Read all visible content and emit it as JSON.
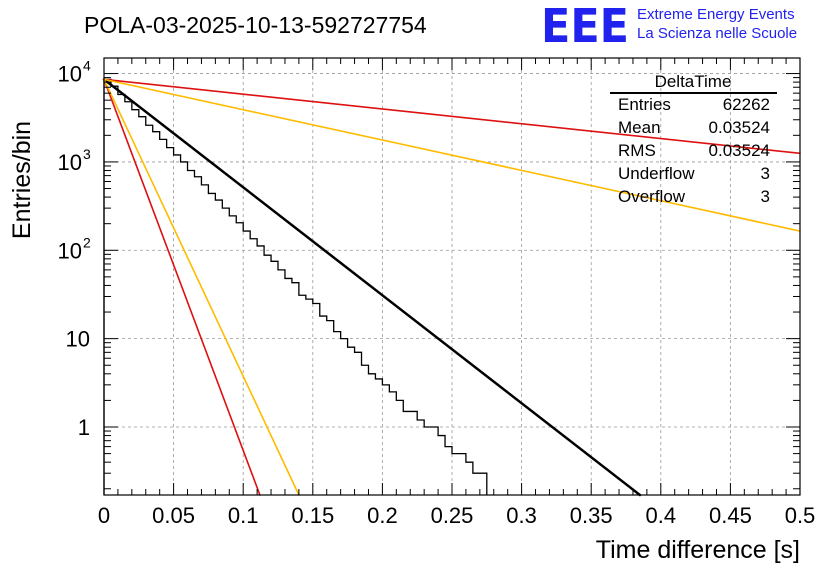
{
  "chart_data": {
    "type": "histogram",
    "title": "POLA-03-2025-10-13-592727754",
    "xlabel": "Time difference [s]",
    "ylabel": "Entries/bin",
    "xlim": [
      0,
      0.5
    ],
    "ylim_log": [
      0.17,
      15000
    ],
    "y_scale": "log",
    "grid": true,
    "x_ticks": [
      0,
      0.05,
      0.1,
      0.15,
      0.2,
      0.25,
      0.3,
      0.35,
      0.4,
      0.45,
      0.5
    ],
    "x_tick_labels": [
      "0",
      "0.05",
      "0.1",
      "0.15",
      "0.2",
      "0.25",
      "0.3",
      "0.35",
      "0.4",
      "0.45",
      "0.5"
    ],
    "y_ticks": [
      1,
      10,
      100,
      1000,
      10000
    ],
    "y_tick_labels": [
      {
        "base": "1",
        "exp": ""
      },
      {
        "base": "10",
        "exp": ""
      },
      {
        "base": "10",
        "exp": "2"
      },
      {
        "base": "10",
        "exp": "3"
      },
      {
        "base": "10",
        "exp": "4"
      }
    ],
    "bin_width": 0.005,
    "histogram": [
      {
        "x": 0.0,
        "y": 8600
      },
      {
        "x": 0.005,
        "y": 7200
      },
      {
        "x": 0.01,
        "y": 5800
      },
      {
        "x": 0.015,
        "y": 4800
      },
      {
        "x": 0.02,
        "y": 3900
      },
      {
        "x": 0.025,
        "y": 3250
      },
      {
        "x": 0.03,
        "y": 2600
      },
      {
        "x": 0.035,
        "y": 2200
      },
      {
        "x": 0.04,
        "y": 1800
      },
      {
        "x": 0.045,
        "y": 1450
      },
      {
        "x": 0.05,
        "y": 1200
      },
      {
        "x": 0.055,
        "y": 1000
      },
      {
        "x": 0.06,
        "y": 800
      },
      {
        "x": 0.065,
        "y": 680
      },
      {
        "x": 0.07,
        "y": 550
      },
      {
        "x": 0.075,
        "y": 440
      },
      {
        "x": 0.08,
        "y": 370
      },
      {
        "x": 0.085,
        "y": 300
      },
      {
        "x": 0.09,
        "y": 245
      },
      {
        "x": 0.095,
        "y": 205
      },
      {
        "x": 0.1,
        "y": 165
      },
      {
        "x": 0.105,
        "y": 135
      },
      {
        "x": 0.11,
        "y": 112
      },
      {
        "x": 0.115,
        "y": 88
      },
      {
        "x": 0.12,
        "y": 75
      },
      {
        "x": 0.125,
        "y": 60
      },
      {
        "x": 0.13,
        "y": 48
      },
      {
        "x": 0.135,
        "y": 43
      },
      {
        "x": 0.14,
        "y": 31
      },
      {
        "x": 0.145,
        "y": 28
      },
      {
        "x": 0.15,
        "y": 25
      },
      {
        "x": 0.155,
        "y": 18
      },
      {
        "x": 0.16,
        "y": 16
      },
      {
        "x": 0.165,
        "y": 12
      },
      {
        "x": 0.17,
        "y": 10
      },
      {
        "x": 0.175,
        "y": 8
      },
      {
        "x": 0.18,
        "y": 7
      },
      {
        "x": 0.185,
        "y": 5
      },
      {
        "x": 0.19,
        "y": 4
      },
      {
        "x": 0.195,
        "y": 3.5
      },
      {
        "x": 0.2,
        "y": 3
      },
      {
        "x": 0.205,
        "y": 2.5
      },
      {
        "x": 0.21,
        "y": 2
      },
      {
        "x": 0.215,
        "y": 1.5
      },
      {
        "x": 0.22,
        "y": 1.5
      },
      {
        "x": 0.225,
        "y": 1.2
      },
      {
        "x": 0.23,
        "y": 1
      },
      {
        "x": 0.235,
        "y": 1
      },
      {
        "x": 0.24,
        "y": 0.8
      },
      {
        "x": 0.245,
        "y": 0.6
      },
      {
        "x": 0.25,
        "y": 0.5
      },
      {
        "x": 0.255,
        "y": 0.5
      },
      {
        "x": 0.26,
        "y": 0.4
      },
      {
        "x": 0.265,
        "y": 0.3
      },
      {
        "x": 0.27,
        "y": 0.3
      }
    ],
    "fit_lines": [
      {
        "name": "fit-black",
        "color": "#000000",
        "x": [
          0,
          0.385
        ],
        "y": [
          8600,
          0.17
        ],
        "width": 2.5
      },
      {
        "name": "red-slow",
        "color": "#dd1111",
        "x": [
          0,
          0.5
        ],
        "y": [
          8600,
          1250
        ],
        "width": 1.6
      },
      {
        "name": "orange-slow",
        "color": "#ffbb00",
        "x": [
          0,
          0.5
        ],
        "y": [
          8600,
          165
        ],
        "width": 1.6
      },
      {
        "name": "red-fast",
        "color": "#dd1111",
        "x": [
          0,
          0.112
        ],
        "y": [
          8600,
          0.17
        ],
        "width": 1.6
      },
      {
        "name": "orange-fast",
        "color": "#ffbb00",
        "x": [
          0,
          0.14
        ],
        "y": [
          8600,
          0.17
        ],
        "width": 1.6
      }
    ],
    "stats_box": {
      "title": "DeltaTime",
      "rows": [
        {
          "label": "Entries",
          "value": "62262"
        },
        {
          "label": "Mean",
          "value": "0.03524"
        },
        {
          "label": "RMS",
          "value": "0.03524"
        },
        {
          "label": "Underflow",
          "value": "3"
        },
        {
          "label": "Overflow",
          "value": "3"
        }
      ]
    },
    "logo": {
      "mark": "EEE",
      "line1": "Extreme Energy Events",
      "line2": "La Scienza nelle Scuole",
      "color": "#2222ee"
    }
  }
}
